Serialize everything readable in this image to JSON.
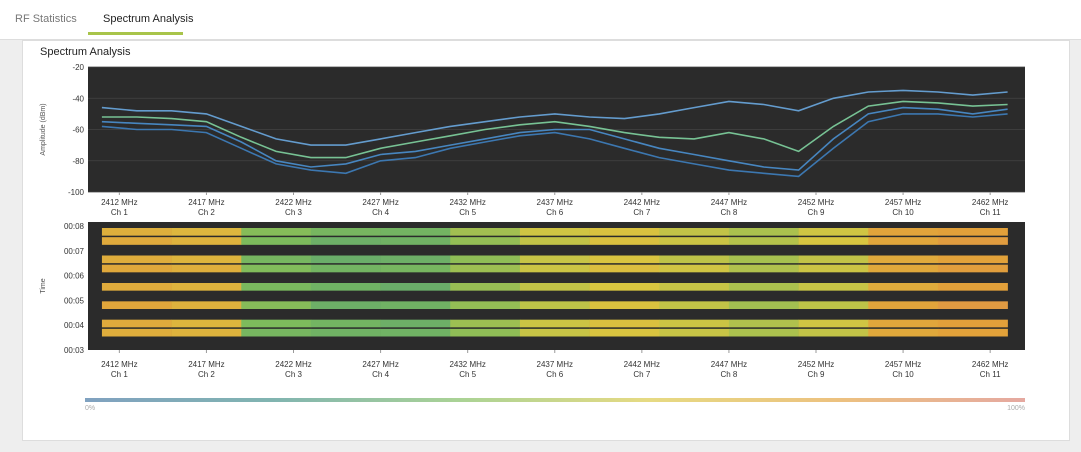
{
  "tabs": [
    "RF Statistics",
    "Spectrum Analysis"
  ],
  "panel_title": "Spectrum Analysis",
  "chart_data": [
    {
      "type": "line",
      "ylabel": "Amplitude (dBm)",
      "background": "#2b2b2b",
      "grid": true,
      "xlim": [
        2410.2,
        2464
      ],
      "xticks": [
        {
          "value": 2412,
          "label": "2412 MHz",
          "sublabel": "Ch 1"
        },
        {
          "value": 2417,
          "label": "2417 MHz",
          "sublabel": "Ch 2"
        },
        {
          "value": 2422,
          "label": "2422 MHz",
          "sublabel": "Ch 3"
        },
        {
          "value": 2427,
          "label": "2427 MHz",
          "sublabel": "Ch 4"
        },
        {
          "value": 2432,
          "label": "2432 MHz",
          "sublabel": "Ch 5"
        },
        {
          "value": 2437,
          "label": "2437 MHz",
          "sublabel": "Ch 6"
        },
        {
          "value": 2442,
          "label": "2442 MHz",
          "sublabel": "Ch 7"
        },
        {
          "value": 2447,
          "label": "2447 MHz",
          "sublabel": "Ch 8"
        },
        {
          "value": 2452,
          "label": "2452 MHz",
          "sublabel": "Ch 9"
        },
        {
          "value": 2457,
          "label": "2457 MHz",
          "sublabel": "Ch 10"
        },
        {
          "value": 2462,
          "label": "2462 MHz",
          "sublabel": "Ch 11"
        }
      ],
      "ylim": [
        -100,
        -20
      ],
      "yticks": [
        -20,
        -40,
        -60,
        -80,
        -100
      ],
      "x": [
        2411,
        2413,
        2415,
        2417,
        2419,
        2421,
        2423,
        2425,
        2427,
        2429,
        2431,
        2433,
        2435,
        2437,
        2439,
        2441,
        2443,
        2445,
        2447,
        2449,
        2451,
        2453,
        2455,
        2457,
        2459,
        2461,
        2463
      ],
      "series": [
        {
          "color": "#6aa8e0",
          "values": [
            -46,
            -48,
            -48,
            -50,
            -58,
            -66,
            -70,
            -70,
            -66,
            -62,
            -58,
            -55,
            -52,
            -50,
            -52,
            -53,
            -50,
            -46,
            -42,
            -44,
            -48,
            -40,
            -36,
            -35,
            -36,
            -38,
            -36
          ]
        },
        {
          "color": "#7fd3a0",
          "values": [
            -52,
            -52,
            -53,
            -55,
            -65,
            -74,
            -78,
            -78,
            -72,
            -68,
            -64,
            -60,
            -57,
            -55,
            -58,
            -62,
            -65,
            -66,
            -62,
            -66,
            -74,
            -58,
            -45,
            -42,
            -43,
            -45,
            -44
          ]
        },
        {
          "color": "#4a90d0",
          "values": [
            -55,
            -56,
            -57,
            -58,
            -68,
            -80,
            -84,
            -82,
            -76,
            -74,
            -70,
            -66,
            -62,
            -60,
            -60,
            -66,
            -72,
            -76,
            -80,
            -84,
            -86,
            -66,
            -50,
            -46,
            -47,
            -50,
            -47
          ]
        },
        {
          "color": "#3e7fbf",
          "values": [
            -58,
            -60,
            -60,
            -62,
            -72,
            -82,
            -86,
            -88,
            -80,
            -78,
            -72,
            -68,
            -64,
            -62,
            -66,
            -72,
            -78,
            -82,
            -86,
            -88,
            -90,
            -72,
            -55,
            -50,
            -50,
            -52,
            -50
          ]
        }
      ]
    },
    {
      "type": "heatmap",
      "ylabel": "Time",
      "background": "#2b2b2b",
      "xlim": [
        2410.2,
        2464
      ],
      "xticks": [
        {
          "value": 2412,
          "label": "2412 MHz",
          "sublabel": "Ch 1"
        },
        {
          "value": 2417,
          "label": "2417 MHz",
          "sublabel": "Ch 2"
        },
        {
          "value": 2422,
          "label": "2422 MHz",
          "sublabel": "Ch 3"
        },
        {
          "value": 2427,
          "label": "2427 MHz",
          "sublabel": "Ch 4"
        },
        {
          "value": 2432,
          "label": "2432 MHz",
          "sublabel": "Ch 5"
        },
        {
          "value": 2437,
          "label": "2437 MHz",
          "sublabel": "Ch 6"
        },
        {
          "value": 2442,
          "label": "2442 MHz",
          "sublabel": "Ch 7"
        },
        {
          "value": 2447,
          "label": "2447 MHz",
          "sublabel": "Ch 8"
        },
        {
          "value": 2452,
          "label": "2452 MHz",
          "sublabel": "Ch 9"
        },
        {
          "value": 2457,
          "label": "2457 MHz",
          "sublabel": "Ch 10"
        },
        {
          "value": 2462,
          "label": "2462 MHz",
          "sublabel": "Ch 11"
        }
      ],
      "y_categories": [
        "00:08",
        "00:07",
        "00:06",
        "00:05",
        "00:04",
        "00:03"
      ],
      "bins": [
        2411,
        2415,
        2419,
        2423,
        2427,
        2431,
        2435,
        2439,
        2443,
        2447,
        2451,
        2455,
        2459,
        2463
      ],
      "values": [
        [
          72,
          68,
          42,
          38,
          37,
          48,
          58,
          62,
          55,
          50,
          58,
          78,
          80
        ],
        [
          75,
          70,
          40,
          35,
          36,
          45,
          55,
          63,
          57,
          52,
          60,
          77,
          82
        ],
        null,
        [
          73,
          69,
          38,
          34,
          35,
          44,
          56,
          61,
          54,
          49,
          55,
          75,
          79
        ],
        [
          76,
          72,
          41,
          37,
          38,
          47,
          57,
          64,
          58,
          51,
          57,
          76,
          81
        ],
        null,
        [
          74,
          70,
          39,
          36,
          34,
          46,
          55,
          60,
          56,
          50,
          56,
          74,
          80
        ],
        null,
        [
          77,
          71,
          42,
          35,
          36,
          45,
          54,
          62,
          55,
          48,
          54,
          78,
          83
        ],
        null,
        [
          75,
          69,
          40,
          37,
          35,
          47,
          57,
          63,
          57,
          51,
          58,
          77,
          80
        ],
        [
          73,
          70,
          38,
          36,
          36,
          44,
          56,
          61,
          56,
          50,
          55,
          76,
          79
        ]
      ],
      "colorscale": [
        "#3b6f9e",
        "#3d8c86",
        "#7dbb5c",
        "#d9c640",
        "#e2a03a",
        "#d77a6e"
      ],
      "colorbar_ticks": [
        {
          "value": 0,
          "label": "0%"
        },
        {
          "value": 100,
          "label": "100%"
        }
      ]
    }
  ]
}
